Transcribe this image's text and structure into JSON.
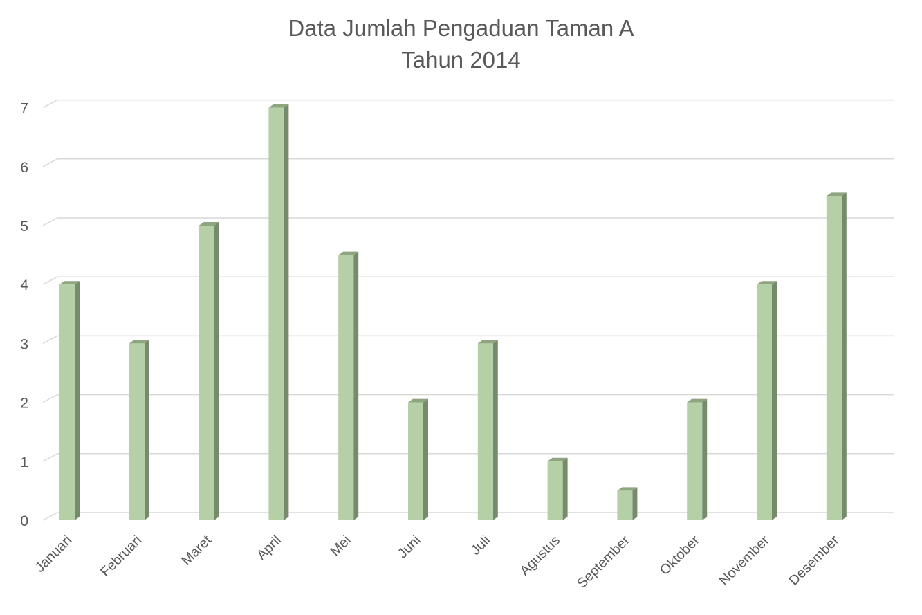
{
  "chart_data": {
    "type": "bar",
    "title": [
      "Data Jumlah Pengaduan Taman A",
      "Tahun 2014"
    ],
    "xlabel": "",
    "ylabel": "",
    "categories": [
      "Januari",
      "Februari",
      "Maret",
      "April",
      "Mei",
      "Juni",
      "Juli",
      "Agustus",
      "September",
      "Oktober",
      "November",
      "Desember"
    ],
    "values": [
      4,
      3,
      5,
      7,
      4.5,
      2,
      3,
      1,
      0.5,
      2,
      4,
      5.5
    ],
    "ylim": [
      0,
      7
    ],
    "yticks": [
      0,
      1,
      2,
      3,
      4,
      5,
      6,
      7
    ],
    "grid": true,
    "legend": "none",
    "style": "3d-column",
    "colors": {
      "bar_front": "#b5cfa7",
      "bar_side": "#768a6c",
      "bar_top": "#8ea57f",
      "grid": "#d9d9d9",
      "text": "#595959"
    }
  }
}
